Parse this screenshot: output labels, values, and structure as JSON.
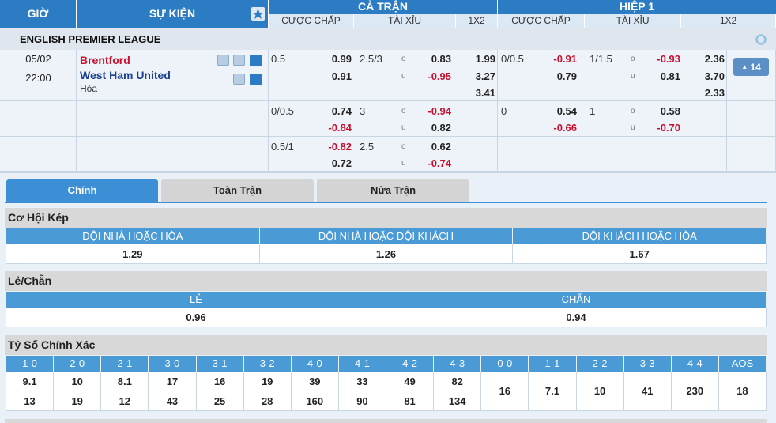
{
  "header": {
    "time": "GIỜ",
    "event": "SỰ KIỆN",
    "full": "CẢ TRẬN",
    "half": "HIỆP 1",
    "cols": [
      "CƯỢC CHẤP",
      "TÀI XỈU",
      "1X2"
    ]
  },
  "league": "ENGLISH PREMIER LEAGUE",
  "match": {
    "date": "05/02",
    "time": "22:00",
    "home": "Brentford",
    "away": "West Ham United",
    "draw": "Hòa",
    "more": "14",
    "full": [
      {
        "hcp": "0.5",
        "hcp_home": "0.99",
        "hcp_away": "0.91",
        "ou": "2.5/3",
        "over": "0.83",
        "under": "-0.95",
        "x12": [
          "1.99",
          "3.27",
          "3.41"
        ]
      },
      {
        "hcp": "0/0.5",
        "hcp_home": "0.74",
        "hcp_away": "-0.84",
        "ou": "3",
        "over": "-0.94",
        "under": "0.82"
      },
      {
        "hcp": "0.5/1",
        "hcp_home": "-0.82",
        "hcp_away": "0.72",
        "ou": "2.5",
        "over": "0.62",
        "under": "-0.74"
      }
    ],
    "half": [
      {
        "hcp": "0/0.5",
        "hcp_home": "-0.91",
        "hcp_away": "0.79",
        "ou": "1/1.5",
        "over": "-0.93",
        "under": "0.81",
        "x12": [
          "2.36",
          "3.70",
          "2.33"
        ]
      },
      {
        "hcp": "0",
        "hcp_home": "0.54",
        "hcp_away": "-0.66",
        "ou": "1",
        "over": "0.58",
        "under": "-0.70"
      }
    ]
  },
  "ou_labels": {
    "over": "o",
    "under": "u"
  },
  "tabs": [
    "Chính",
    "Toàn Trận",
    "Nửa Trận"
  ],
  "double_chance": {
    "title": "Cơ Hội Kép",
    "headers": [
      "ĐỘI NHÀ HOẶC HÒA",
      "ĐỘI NHÀ HOẶC ĐỘI KHÁCH",
      "ĐỘI KHÁCH HOẶC HÒA"
    ],
    "values": [
      "1.29",
      "1.26",
      "1.67"
    ]
  },
  "odd_even": {
    "title": "Lẻ/Chẵn",
    "headers": [
      "LẺ",
      "CHẴN"
    ],
    "values": [
      "0.96",
      "0.94"
    ]
  },
  "correct_score": {
    "title": "Tỷ Số Chính Xác",
    "scores": [
      "1-0",
      "2-0",
      "2-1",
      "3-0",
      "3-1",
      "3-2",
      "4-0",
      "4-1",
      "4-2",
      "4-3",
      "0-0",
      "1-1",
      "2-2",
      "3-3",
      "4-4",
      "AOS"
    ],
    "home_values": [
      "9.1",
      "10",
      "8.1",
      "17",
      "16",
      "19",
      "39",
      "33",
      "49",
      "82"
    ],
    "away_values": [
      "13",
      "19",
      "12",
      "43",
      "25",
      "28",
      "160",
      "90",
      "81",
      "134"
    ],
    "draw_values": [
      "16",
      "7.1",
      "10",
      "41",
      "230",
      "18"
    ]
  }
}
